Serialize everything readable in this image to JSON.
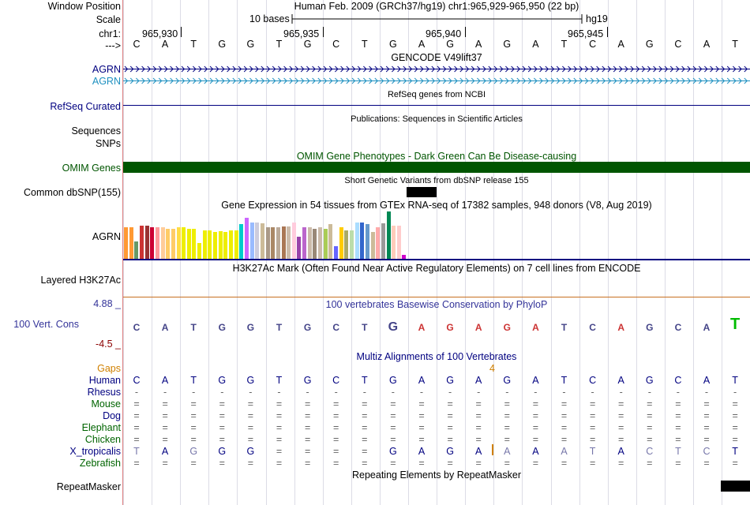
{
  "header": {
    "window_position_label": "Window Position",
    "scale_label": "Scale",
    "chr_label": "chr1:",
    "arrow_label": "--->",
    "assembly_text": "Human Feb. 2009 (GRCh37/hg19)   chr1:965,929-965,950 (22 bp)",
    "scale_text": "10 bases",
    "scale_db": "hg19",
    "positions": [
      "965,930",
      "965,935",
      "965,940",
      "965,945"
    ]
  },
  "sequence": [
    "C",
    "A",
    "T",
    "G",
    "G",
    "T",
    "G",
    "C",
    "T",
    "G",
    "A",
    "G",
    "A",
    "G",
    "A",
    "T",
    "C",
    "A",
    "G",
    "C",
    "A",
    "T"
  ],
  "tracks": {
    "gencode": {
      "title": "GENCODE V49lift37",
      "rows": [
        "AGRN",
        "AGRN"
      ]
    },
    "refseq": {
      "label": "RefSeq Curated",
      "title": "RefSeq genes from NCBI"
    },
    "publications": {
      "label_line1": "Sequences",
      "label_line2": "SNPs",
      "title": "Publications: Sequences in Scientific Articles"
    },
    "omim": {
      "label": "OMIM Genes",
      "title": "OMIM Gene Phenotypes - Dark Green Can Be Disease-causing",
      "color": "#005500"
    },
    "dbsnp": {
      "label": "Common dbSNP(155)",
      "title": "Short Genetic Variants from dbSNP release 155"
    },
    "gtex": {
      "label": "AGRN",
      "title": "Gene Expression in 54 tissues from GTEx RNA-seq of 17382 samples, 948 donors (V8, Aug 2019)"
    },
    "h3k27ac": {
      "label": "Layered H3K27Ac",
      "title": "H3K27Ac Mark (Often Found Near Active Regulatory Elements) on 7 cell lines from ENCODE"
    },
    "phylop": {
      "label": "100 Vert. Cons",
      "title": "100 vertebrates Basewise Conservation by PhyloP",
      "ymax": "4.88 _",
      "ymin": "-4.5 _"
    },
    "multiz": {
      "title": "Multiz Alignments of 100 Vertebrates",
      "gaps_label": "Gaps",
      "gap_count": "4",
      "species": [
        {
          "name": "Human",
          "color": "#000080"
        },
        {
          "name": "Rhesus",
          "color": "#000080"
        },
        {
          "name": "Mouse",
          "color": "#006400"
        },
        {
          "name": "Dog",
          "color": "#000080"
        },
        {
          "name": "Elephant",
          "color": "#006400"
        },
        {
          "name": "Chicken",
          "color": "#006400"
        },
        {
          "name": "X_tropicalis",
          "color": "#000080"
        },
        {
          "name": "Zebrafish",
          "color": "#006400"
        }
      ],
      "rhesus_row": "-",
      "other_row": "=",
      "xtrop_row": [
        "T",
        "A",
        "G",
        "G",
        "G",
        "=",
        "=",
        "=",
        "=",
        "G",
        "A",
        "G",
        "A",
        "A",
        "A",
        "A",
        "T",
        "A",
        "C",
        "T",
        "C",
        "T"
      ]
    },
    "repeatmasker": {
      "label": "RepeatMasker",
      "title": "Repeating Elements by RepeatMasker"
    }
  },
  "colors": {
    "label_blue": "#000080",
    "omim_green": "#005500",
    "gaps_orange": "#d08000",
    "phylop_blue": "#333399",
    "phylop_red": "#8b0000"
  }
}
